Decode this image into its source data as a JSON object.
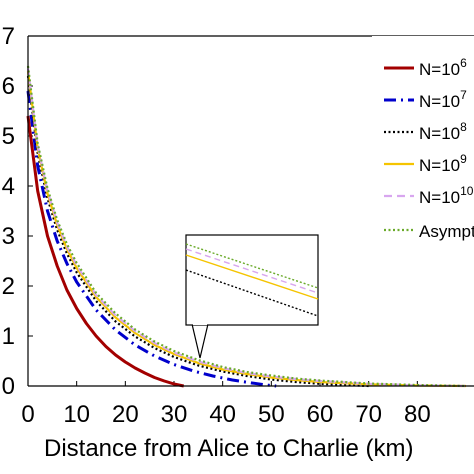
{
  "chart_data": {
    "type": "line",
    "xlabel": "Distance from Alice to Charlie (km)",
    "ylabel": "",
    "xlim": [
      0,
      90
    ],
    "ylim": [
      0,
      7
    ],
    "x_ticks": [
      "0",
      "10",
      "20",
      "30",
      "40",
      "50",
      "60",
      "70",
      "80"
    ],
    "y_ticks": [
      "0",
      "1",
      "2",
      "3",
      "4",
      "5",
      "6",
      "7"
    ],
    "grid": false,
    "legend_position": "top-right",
    "inset": true,
    "series": [
      {
        "name": "N=10",
        "sup": "6",
        "color": "#a30000",
        "style": "solid",
        "x": [
          0,
          2,
          4,
          6,
          8,
          10,
          12,
          14,
          16,
          18,
          20,
          22,
          24,
          26,
          28,
          30,
          32
        ],
        "y": [
          5.4,
          3.9,
          3.0,
          2.4,
          1.92,
          1.55,
          1.25,
          1.0,
          0.79,
          0.62,
          0.48,
          0.36,
          0.26,
          0.17,
          0.1,
          0.04,
          0.0
        ]
      },
      {
        "name": "N=10",
        "sup": "7",
        "color": "#0000cc",
        "style": "dashdot",
        "x": [
          0,
          2,
          4,
          6,
          8,
          10,
          14,
          18,
          22,
          26,
          30,
          34,
          38,
          42,
          46,
          48,
          50,
          51
        ],
        "y": [
          5.9,
          4.4,
          3.5,
          2.9,
          2.45,
          2.08,
          1.52,
          1.12,
          0.82,
          0.6,
          0.43,
          0.3,
          0.2,
          0.12,
          0.06,
          0.035,
          0.01,
          0.0
        ]
      },
      {
        "name": "N=10",
        "sup": "8",
        "color": "#000000",
        "style": "dotted",
        "x": [
          0,
          2,
          4,
          6,
          8,
          10,
          14,
          18,
          22,
          26,
          30,
          35,
          40,
          45,
          50,
          55,
          60,
          65,
          70
        ],
        "y": [
          6.2,
          4.65,
          3.75,
          3.12,
          2.65,
          2.27,
          1.7,
          1.29,
          0.99,
          0.76,
          0.58,
          0.41,
          0.29,
          0.2,
          0.13,
          0.08,
          0.045,
          0.02,
          0.0
        ]
      },
      {
        "name": "N=10",
        "sup": "9",
        "color": "#f5c400",
        "style": "solid",
        "x": [
          0,
          2,
          4,
          6,
          8,
          10,
          14,
          18,
          22,
          26,
          30,
          35,
          40,
          45,
          50,
          55,
          60,
          70,
          80,
          90
        ],
        "y": [
          6.3,
          4.75,
          3.85,
          3.22,
          2.74,
          2.36,
          1.78,
          1.37,
          1.06,
          0.82,
          0.64,
          0.46,
          0.33,
          0.24,
          0.17,
          0.12,
          0.08,
          0.035,
          0.01,
          0.0
        ]
      },
      {
        "name": "N=10",
        "sup": "10",
        "color": "#d8a6ef",
        "style": "dashed",
        "x": [
          0,
          2,
          4,
          6,
          8,
          10,
          14,
          18,
          22,
          26,
          30,
          35,
          40,
          45,
          50,
          55,
          60,
          70,
          80,
          90
        ],
        "y": [
          6.35,
          4.8,
          3.9,
          3.27,
          2.79,
          2.41,
          1.82,
          1.41,
          1.1,
          0.86,
          0.67,
          0.49,
          0.36,
          0.26,
          0.19,
          0.14,
          0.1,
          0.045,
          0.015,
          0.0
        ]
      },
      {
        "name": "Asymptotic",
        "sup": "",
        "color": "#6aaa2a",
        "style": "dotted",
        "x": [
          0,
          2,
          4,
          6,
          8,
          10,
          14,
          18,
          22,
          26,
          30,
          35,
          40,
          45,
          50,
          55,
          60,
          70,
          80,
          90
        ],
        "y": [
          6.4,
          4.85,
          3.95,
          3.32,
          2.84,
          2.46,
          1.86,
          1.45,
          1.13,
          0.89,
          0.7,
          0.52,
          0.38,
          0.28,
          0.21,
          0.15,
          0.11,
          0.05,
          0.02,
          0.0
        ]
      }
    ]
  }
}
